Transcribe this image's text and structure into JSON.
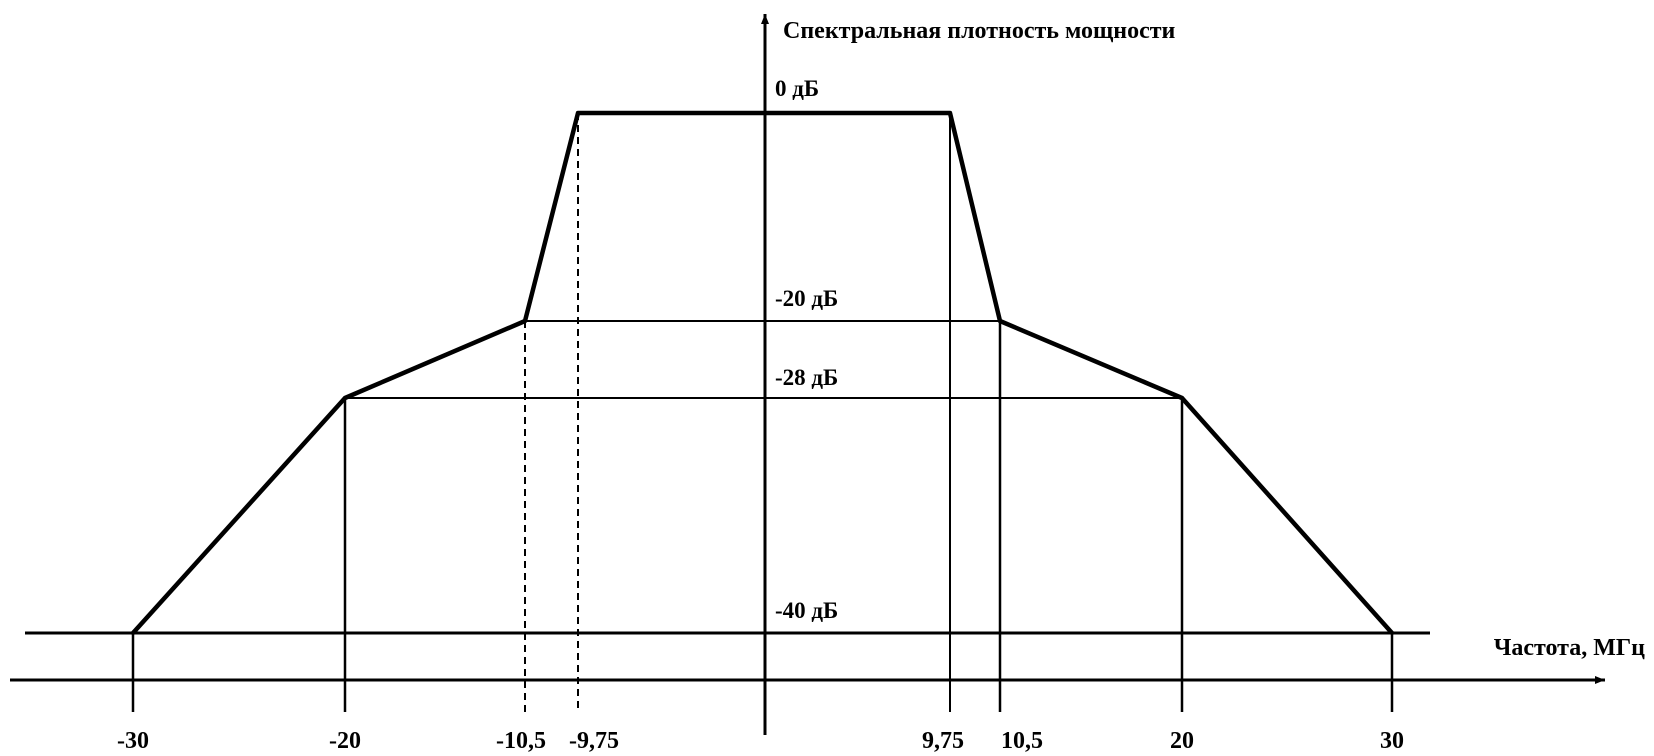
{
  "chart_data": {
    "type": "line",
    "ylabel": "Спектральная плотность мощности",
    "xlabel": "Частота, МГц",
    "x_ticks": [
      "-30",
      "-20",
      "-10,5",
      "-9,75",
      "9,75",
      "10,5",
      "20",
      "30"
    ],
    "y_levels": [
      "0 дБ",
      "-20 дБ",
      "-28 дБ",
      "-40 дБ"
    ],
    "series": [
      {
        "x": [
          -30,
          -20,
          -10.5,
          -9.75,
          9.75,
          10.5,
          20,
          30
        ],
        "y": [
          -40,
          -28,
          -20,
          0,
          0,
          -20,
          -28,
          -40
        ]
      }
    ],
    "xlim": [
      -36,
      40
    ],
    "ylim": [
      -40,
      0
    ],
    "grid": false
  }
}
